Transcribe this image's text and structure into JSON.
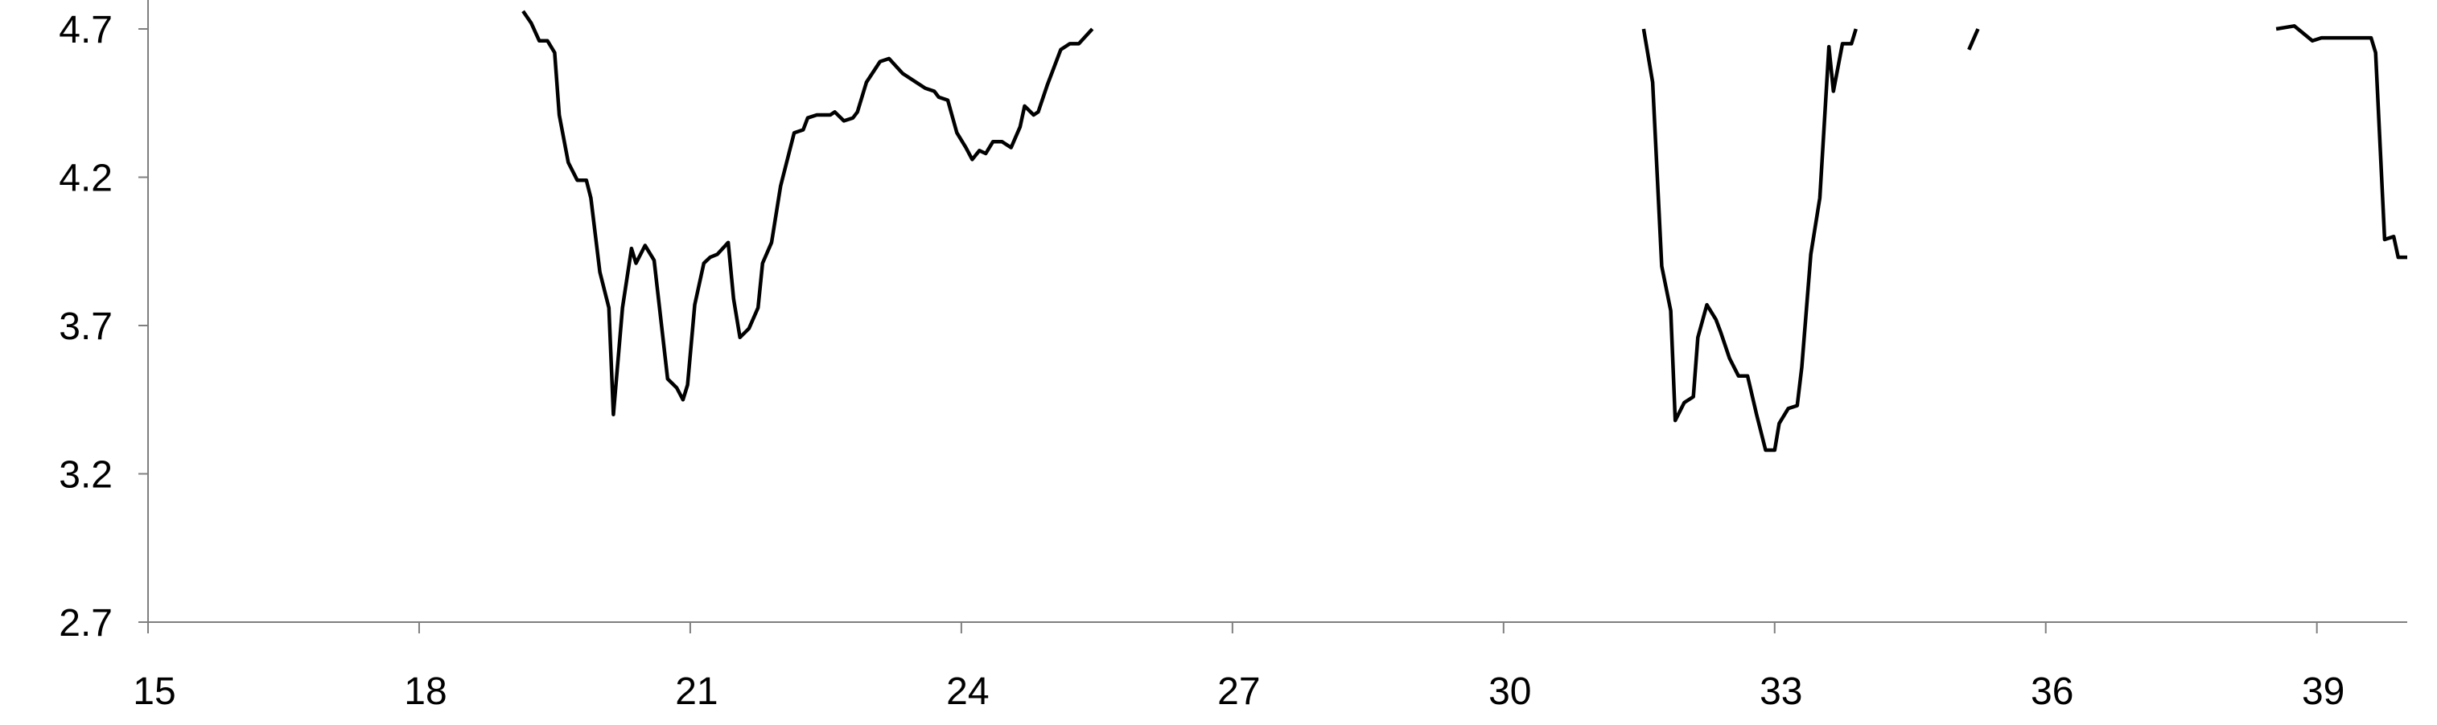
{
  "chart_data": {
    "type": "line",
    "title": "",
    "xlabel": "",
    "ylabel": "",
    "xlim": [
      15,
      40
    ],
    "ylim": [
      2.7,
      4.7
    ],
    "x_ticks": [
      15,
      18,
      21,
      24,
      27,
      30,
      33,
      36,
      39
    ],
    "y_ticks": [
      2.7,
      3.2,
      3.7,
      4.2,
      4.7
    ],
    "x_tick_labels": [
      "15",
      "18",
      "21",
      "24",
      "27",
      "30",
      "33",
      "36",
      "39"
    ],
    "y_tick_labels": [
      "2.7",
      "3.2",
      "3.7",
      "4.2",
      "4.7"
    ],
    "grid": false,
    "legend": "none",
    "line_color": "#000000",
    "series": [
      {
        "segments": [
          [
            [
              19.15,
              4.76
            ],
            [
              19.24,
              4.72
            ],
            [
              19.33,
              4.66
            ],
            [
              19.42,
              4.66
            ],
            [
              19.5,
              4.62
            ],
            [
              19.55,
              4.41
            ],
            [
              19.65,
              4.25
            ],
            [
              19.75,
              4.19
            ],
            [
              19.85,
              4.19
            ],
            [
              19.9,
              4.13
            ],
            [
              20.0,
              3.88
            ],
            [
              20.1,
              3.76
            ],
            [
              20.15,
              3.4
            ],
            [
              20.25,
              3.76
            ],
            [
              20.35,
              3.96
            ],
            [
              20.4,
              3.91
            ],
            [
              20.5,
              3.97
            ],
            [
              20.6,
              3.92
            ],
            [
              20.75,
              3.52
            ],
            [
              20.85,
              3.49
            ],
            [
              20.92,
              3.45
            ],
            [
              20.97,
              3.5
            ],
            [
              21.05,
              3.77
            ],
            [
              21.15,
              3.91
            ],
            [
              21.22,
              3.93
            ],
            [
              21.3,
              3.94
            ],
            [
              21.42,
              3.98
            ],
            [
              21.48,
              3.79
            ],
            [
              21.55,
              3.66
            ],
            [
              21.65,
              3.69
            ],
            [
              21.75,
              3.76
            ],
            [
              21.8,
              3.91
            ],
            [
              21.9,
              3.98
            ],
            [
              22.0,
              4.17
            ],
            [
              22.15,
              4.35
            ],
            [
              22.25,
              4.36
            ],
            [
              22.3,
              4.4
            ],
            [
              22.4,
              4.41
            ],
            [
              22.55,
              4.41
            ],
            [
              22.6,
              4.42
            ],
            [
              22.7,
              4.39
            ],
            [
              22.8,
              4.4
            ],
            [
              22.85,
              4.42
            ],
            [
              22.95,
              4.52
            ],
            [
              23.1,
              4.59
            ],
            [
              23.2,
              4.6
            ],
            [
              23.35,
              4.55
            ],
            [
              23.5,
              4.52
            ],
            [
              23.6,
              4.5
            ],
            [
              23.7,
              4.49
            ],
            [
              23.75,
              4.47
            ],
            [
              23.85,
              4.46
            ],
            [
              23.95,
              4.35
            ],
            [
              24.05,
              4.3
            ],
            [
              24.12,
              4.26
            ],
            [
              24.2,
              4.29
            ],
            [
              24.27,
              4.28
            ],
            [
              24.35,
              4.32
            ],
            [
              24.45,
              4.32
            ],
            [
              24.55,
              4.3
            ],
            [
              24.65,
              4.37
            ],
            [
              24.7,
              4.44
            ],
            [
              24.8,
              4.41
            ],
            [
              24.85,
              4.42
            ],
            [
              24.95,
              4.51
            ],
            [
              25.05,
              4.59
            ],
            [
              25.1,
              4.63
            ],
            [
              25.2,
              4.65
            ],
            [
              25.3,
              4.65
            ],
            [
              25.45,
              4.7
            ]
          ],
          [
            [
              31.55,
              4.7
            ],
            [
              31.65,
              4.52
            ],
            [
              31.75,
              3.9
            ],
            [
              31.85,
              3.75
            ],
            [
              31.9,
              3.38
            ],
            [
              32.0,
              3.44
            ],
            [
              32.1,
              3.46
            ],
            [
              32.15,
              3.66
            ],
            [
              32.25,
              3.77
            ],
            [
              32.35,
              3.72
            ],
            [
              32.4,
              3.68
            ],
            [
              32.5,
              3.59
            ],
            [
              32.6,
              3.53
            ],
            [
              32.7,
              3.53
            ],
            [
              32.8,
              3.4
            ],
            [
              32.9,
              3.28
            ],
            [
              33.0,
              3.28
            ],
            [
              33.05,
              3.37
            ],
            [
              33.15,
              3.42
            ],
            [
              33.25,
              3.43
            ],
            [
              33.3,
              3.56
            ],
            [
              33.4,
              3.94
            ],
            [
              33.5,
              4.13
            ],
            [
              33.6,
              4.64
            ],
            [
              33.65,
              4.49
            ],
            [
              33.75,
              4.65
            ],
            [
              33.85,
              4.65
            ],
            [
              33.9,
              4.7
            ]
          ],
          [
            [
              35.15,
              4.63
            ],
            [
              35.25,
              4.7
            ]
          ],
          [
            [
              38.55,
              4.7
            ],
            [
              38.75,
              4.71
            ],
            [
              38.95,
              4.66
            ],
            [
              39.05,
              4.67
            ],
            [
              39.6,
              4.67
            ],
            [
              39.65,
              4.62
            ],
            [
              39.75,
              3.99
            ],
            [
              39.85,
              4.0
            ],
            [
              39.9,
              3.93
            ],
            [
              40.0,
              3.93
            ]
          ]
        ]
      }
    ]
  }
}
